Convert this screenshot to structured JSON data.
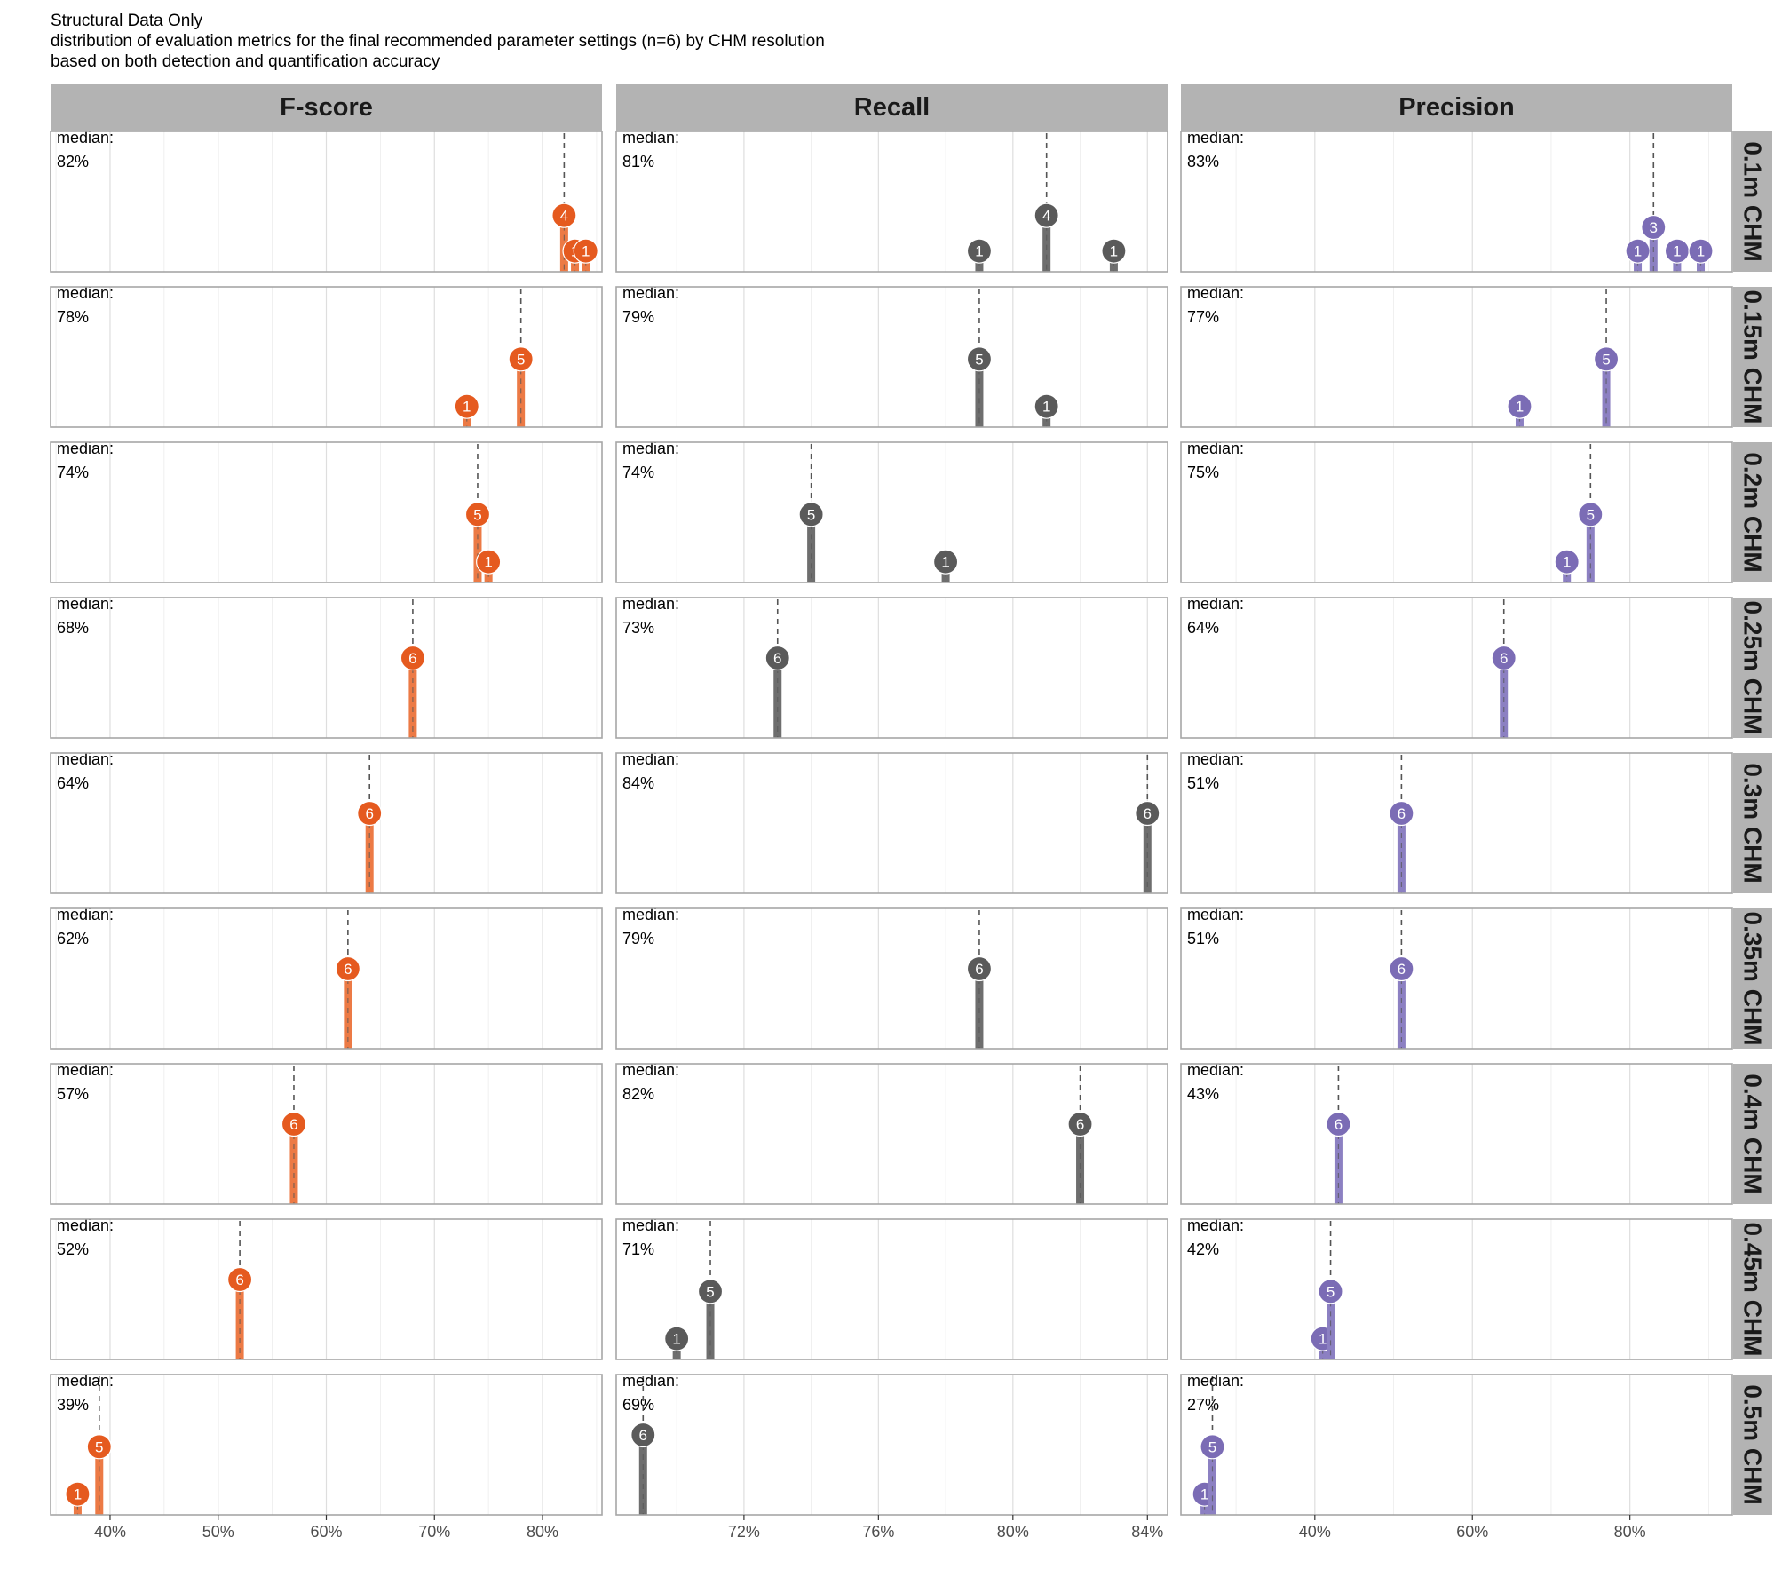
{
  "titles": {
    "line1": "Structural Data Only",
    "line2": "distribution of evaluation metrics for the final recommended parameter settings (n=6) by CHM resolution",
    "line3": "based on both detection and quantification accuracy"
  },
  "chart_data": {
    "type": "lollipop-facet",
    "median_label": "median:",
    "columns": [
      {
        "name": "F-score",
        "color": "#e55a1f",
        "bar_color": "#ec7a45",
        "xlim": [
          34.5,
          85.5
        ],
        "ticks": [
          40,
          50,
          60,
          70,
          80
        ],
        "tick_labels": [
          "40%",
          "50%",
          "60%",
          "70%",
          "80%"
        ]
      },
      {
        "name": "Recall",
        "color": "#5a5a5a",
        "bar_color": "#6e6e6e",
        "xlim": [
          68.2,
          84.6
        ],
        "ticks": [
          72,
          76,
          80,
          84
        ],
        "tick_labels": [
          "72%",
          "76%",
          "80%",
          "84%"
        ]
      },
      {
        "name": "Precision",
        "color": "#7b6cb5",
        "bar_color": "#8c80c2",
        "xlim": [
          23.0,
          93.0
        ],
        "ticks": [
          40,
          60,
          80
        ],
        "tick_labels": [
          "40%",
          "60%",
          "80%"
        ]
      }
    ],
    "rows": [
      "0.1m CHM",
      "0.15m CHM",
      "0.2m CHM",
      "0.25m CHM",
      "0.3m CHM",
      "0.35m CHM",
      "0.4m CHM",
      "0.45m CHM",
      "0.5m CHM"
    ],
    "y_max_count": 6,
    "panels": [
      [
        {
          "median": 82,
          "median_label": "82%",
          "points": [
            {
              "x": 82,
              "n": 4
            },
            {
              "x": 83,
              "n": 1
            },
            {
              "x": 84,
              "n": 1
            }
          ]
        },
        {
          "median": 81,
          "median_label": "81%",
          "points": [
            {
              "x": 79,
              "n": 1
            },
            {
              "x": 81,
              "n": 4
            },
            {
              "x": 83,
              "n": 1
            }
          ]
        },
        {
          "median": 83,
          "median_label": "83%",
          "points": [
            {
              "x": 81,
              "n": 1
            },
            {
              "x": 83,
              "n": 3
            },
            {
              "x": 86,
              "n": 1
            },
            {
              "x": 89,
              "n": 1
            }
          ]
        }
      ],
      [
        {
          "median": 78,
          "median_label": "78%",
          "points": [
            {
              "x": 73,
              "n": 1
            },
            {
              "x": 78,
              "n": 5
            }
          ]
        },
        {
          "median": 79,
          "median_label": "79%",
          "points": [
            {
              "x": 79,
              "n": 5
            },
            {
              "x": 81,
              "n": 1
            }
          ]
        },
        {
          "median": 77,
          "median_label": "77%",
          "points": [
            {
              "x": 66,
              "n": 1
            },
            {
              "x": 77,
              "n": 5
            }
          ]
        }
      ],
      [
        {
          "median": 74,
          "median_label": "74%",
          "points": [
            {
              "x": 74,
              "n": 5
            },
            {
              "x": 75,
              "n": 1
            }
          ]
        },
        {
          "median": 74,
          "median_label": "74%",
          "points": [
            {
              "x": 74,
              "n": 5
            },
            {
              "x": 78,
              "n": 1
            }
          ]
        },
        {
          "median": 75,
          "median_label": "75%",
          "points": [
            {
              "x": 72,
              "n": 1
            },
            {
              "x": 75,
              "n": 5
            }
          ]
        }
      ],
      [
        {
          "median": 68,
          "median_label": "68%",
          "points": [
            {
              "x": 68,
              "n": 6
            }
          ]
        },
        {
          "median": 73,
          "median_label": "73%",
          "points": [
            {
              "x": 73,
              "n": 6
            }
          ]
        },
        {
          "median": 64,
          "median_label": "64%",
          "points": [
            {
              "x": 64,
              "n": 6
            }
          ]
        }
      ],
      [
        {
          "median": 64,
          "median_label": "64%",
          "points": [
            {
              "x": 64,
              "n": 6
            }
          ]
        },
        {
          "median": 84,
          "median_label": "84%",
          "points": [
            {
              "x": 84,
              "n": 6
            }
          ]
        },
        {
          "median": 51,
          "median_label": "51%",
          "points": [
            {
              "x": 51,
              "n": 6
            }
          ]
        }
      ],
      [
        {
          "median": 62,
          "median_label": "62%",
          "points": [
            {
              "x": 62,
              "n": 6
            }
          ]
        },
        {
          "median": 79,
          "median_label": "79%",
          "points": [
            {
              "x": 79,
              "n": 6
            }
          ]
        },
        {
          "median": 51,
          "median_label": "51%",
          "points": [
            {
              "x": 51,
              "n": 6
            }
          ]
        }
      ],
      [
        {
          "median": 57,
          "median_label": "57%",
          "points": [
            {
              "x": 57,
              "n": 6
            }
          ]
        },
        {
          "median": 82,
          "median_label": "82%",
          "points": [
            {
              "x": 82,
              "n": 6
            }
          ]
        },
        {
          "median": 43,
          "median_label": "43%",
          "points": [
            {
              "x": 43,
              "n": 6
            }
          ]
        }
      ],
      [
        {
          "median": 52,
          "median_label": "52%",
          "points": [
            {
              "x": 52,
              "n": 6
            }
          ]
        },
        {
          "median": 71,
          "median_label": "71%",
          "points": [
            {
              "x": 70,
              "n": 1
            },
            {
              "x": 71,
              "n": 5
            }
          ]
        },
        {
          "median": 42,
          "median_label": "42%",
          "points": [
            {
              "x": 41,
              "n": 1
            },
            {
              "x": 42,
              "n": 5
            }
          ]
        }
      ],
      [
        {
          "median": 39,
          "median_label": "39%",
          "points": [
            {
              "x": 37,
              "n": 1
            },
            {
              "x": 39,
              "n": 5
            }
          ]
        },
        {
          "median": 69,
          "median_label": "69%",
          "points": [
            {
              "x": 69,
              "n": 6
            }
          ]
        },
        {
          "median": 27,
          "median_label": "27%",
          "points": [
            {
              "x": 26,
              "n": 1
            },
            {
              "x": 27,
              "n": 5
            }
          ]
        }
      ]
    ]
  }
}
